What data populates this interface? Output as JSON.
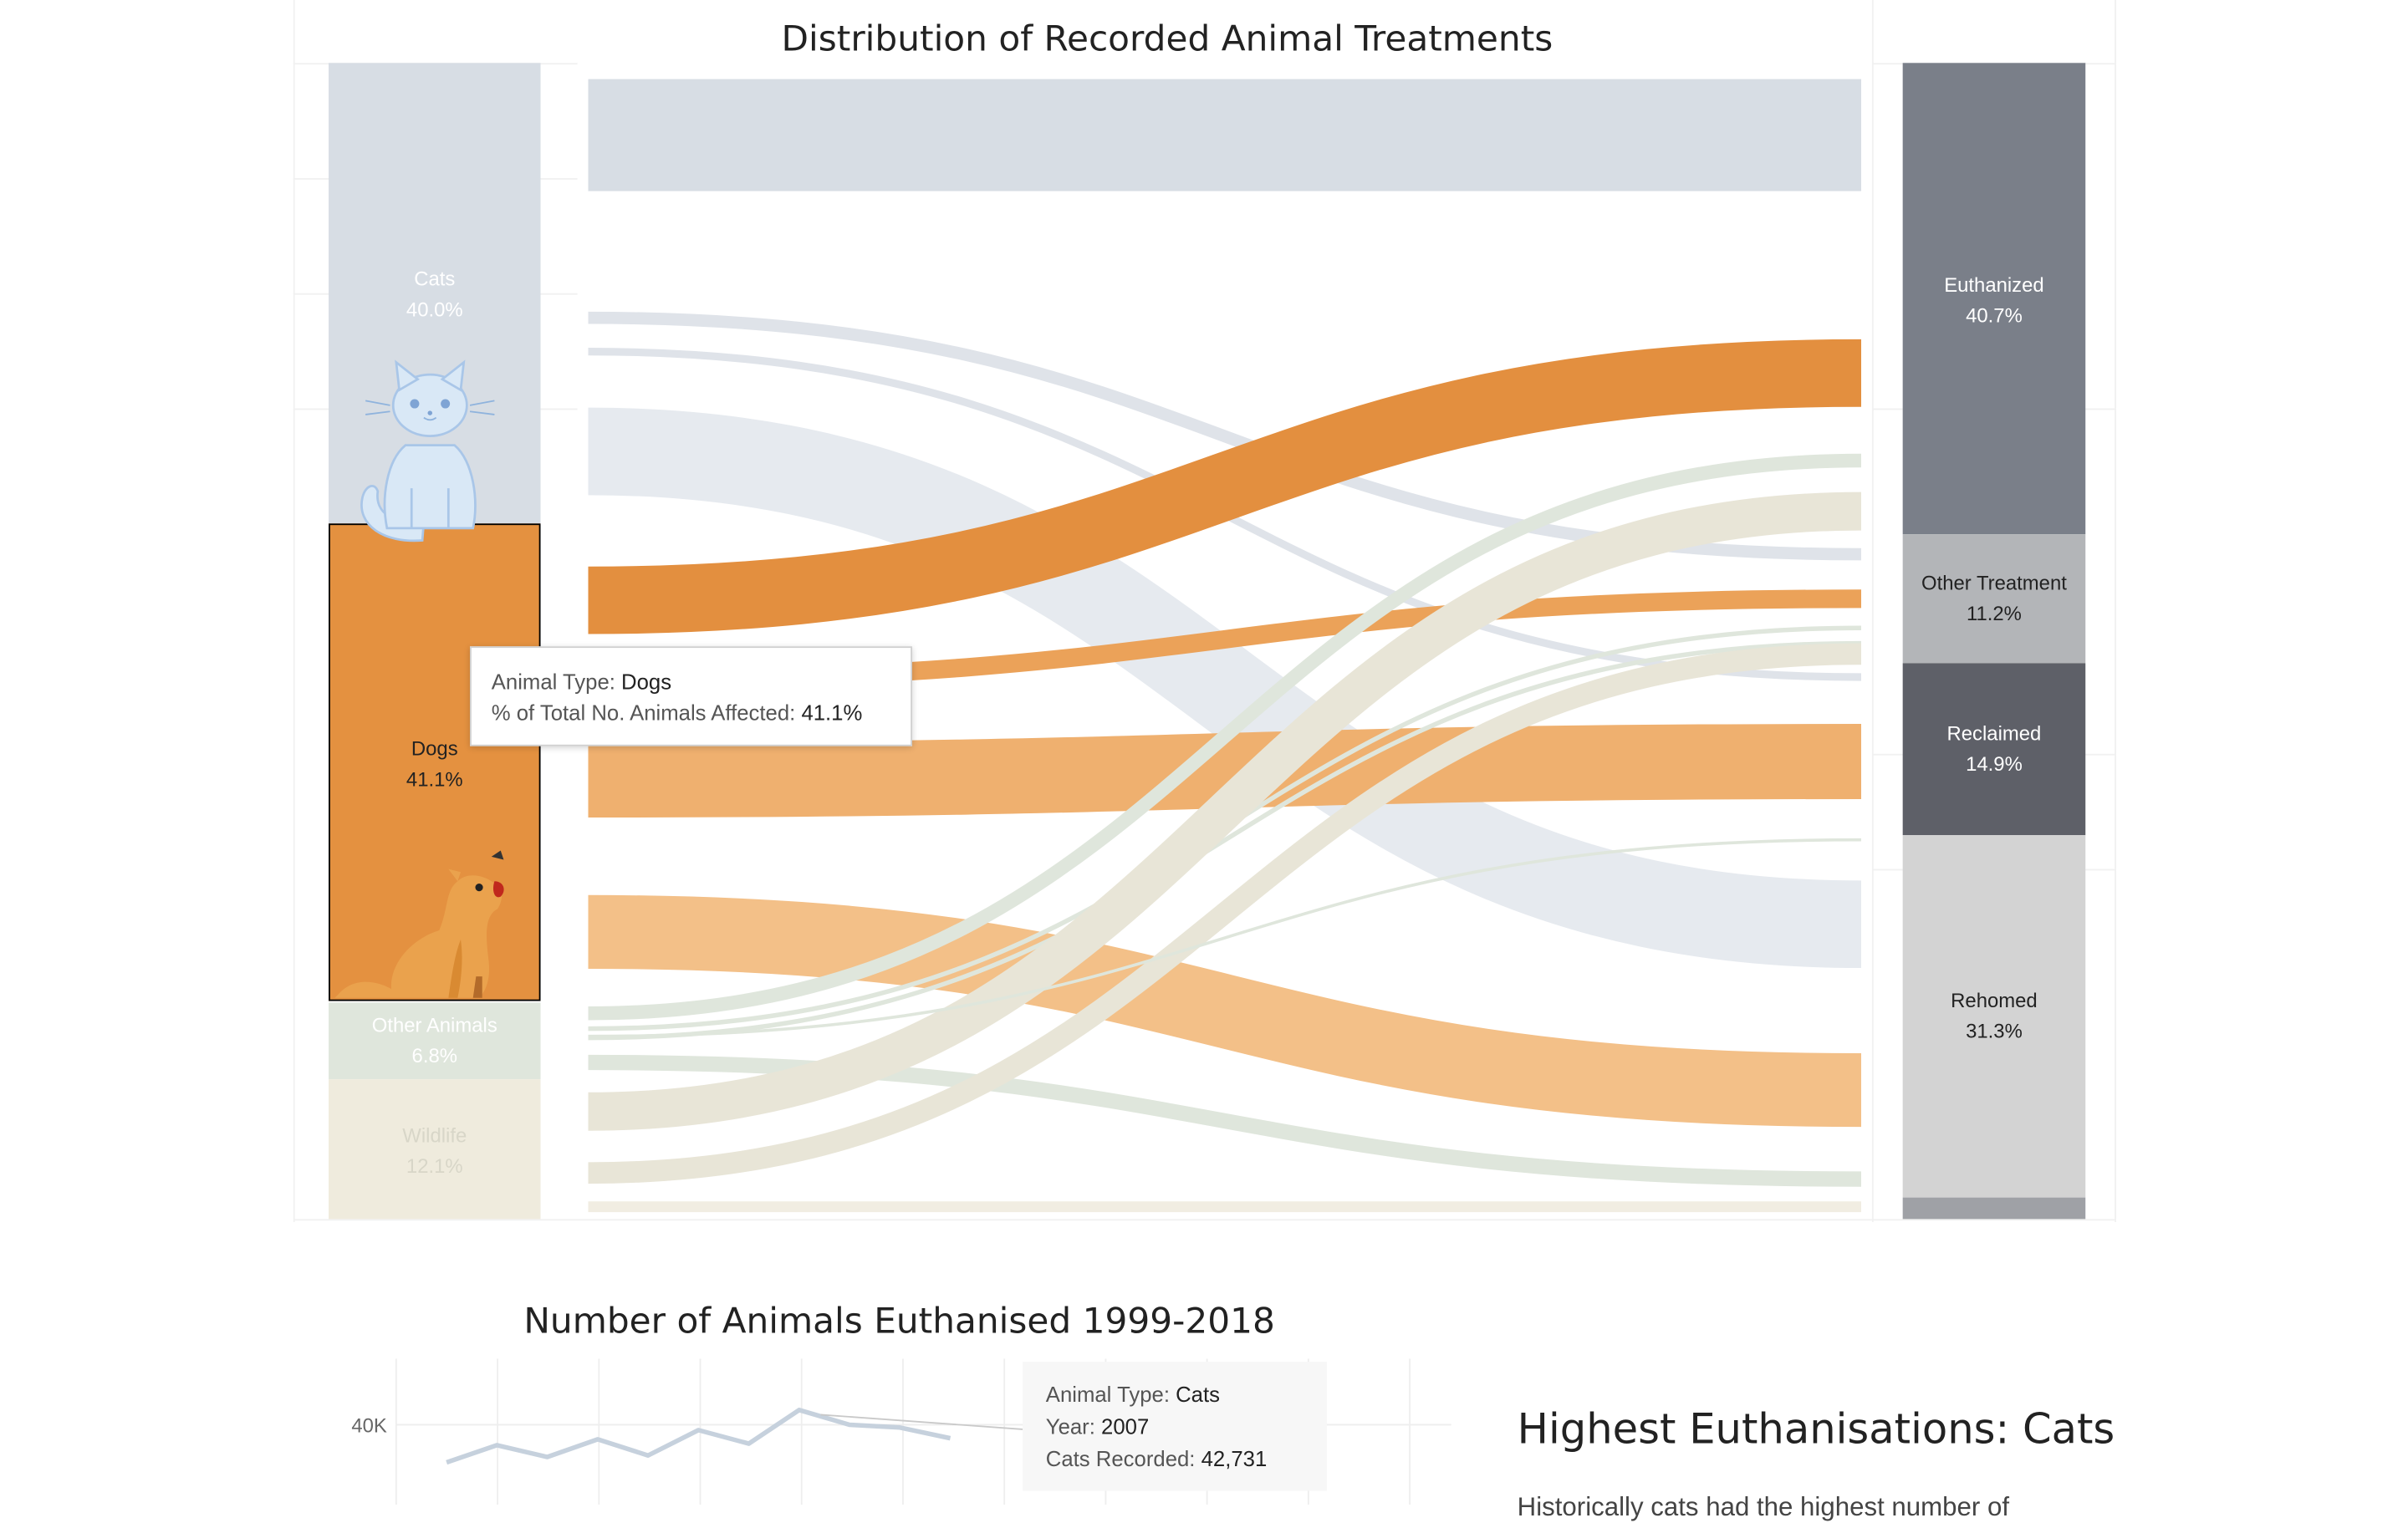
{
  "sankey": {
    "chart_data": {
      "type": "sankey",
      "title": "Distribution of Recorded Animal Treatments",
      "sources": [
        {
          "name": "Cats",
          "percent_label": "40.0%",
          "share": 0.4,
          "color": "#d7dde4"
        },
        {
          "name": "Dogs",
          "percent_label": "41.1%",
          "share": 0.411,
          "color": "#e49140"
        },
        {
          "name": "Other Animals",
          "percent_label": "6.8%",
          "share": 0.068,
          "color": "#dfe6dc"
        },
        {
          "name": "Wildlife",
          "percent_label": "12.1%",
          "share": 0.121,
          "color": "#efebdd"
        }
      ],
      "targets": [
        {
          "name": "Euthanized",
          "percent_label": "40.7%",
          "share": 0.407,
          "color": "#7a7f89",
          "text_color": "#ffffff"
        },
        {
          "name": "Other Treatment",
          "percent_label": "11.2%",
          "share": 0.112,
          "color": "#b3b5b8",
          "text_color": "#222222"
        },
        {
          "name": "Reclaimed",
          "percent_label": "14.9%",
          "share": 0.149,
          "color": "#5e6068",
          "text_color": "#ffffff"
        },
        {
          "name": "Rehomed",
          "percent_label": "31.3%",
          "share": 0.313,
          "color": "#d3d3d3",
          "text_color": "#222222"
        },
        {
          "name": "",
          "percent_label": "",
          "share": 0.019,
          "color": "#9fa1a6",
          "text_color": "#222222"
        }
      ],
      "highlighted_source": "Dogs"
    },
    "tooltip": {
      "line1_label": "Animal Type:",
      "line1_value": "Dogs",
      "line2_label": "% of Total No. Animals Affected:",
      "line2_value": "41.1%"
    }
  },
  "line_chart": {
    "chart_data": {
      "type": "line",
      "title": "Number of Animals Euthanised 1999-2018",
      "y_ticks": [
        "40K"
      ],
      "series": [
        {
          "name": "Cats",
          "color": "#c6d1dd",
          "points_visible": [
            {
              "year": 2000,
              "value": 33000
            },
            {
              "year": 2001,
              "value": 36200
            },
            {
              "year": 2002,
              "value": 34000
            },
            {
              "year": 2003,
              "value": 37300
            },
            {
              "year": 2004,
              "value": 34300
            },
            {
              "year": 2005,
              "value": 39000
            },
            {
              "year": 2006,
              "value": 36500
            },
            {
              "year": 2007,
              "value": 42731
            },
            {
              "year": 2008,
              "value": 40000
            },
            {
              "year": 2009,
              "value": 39500
            },
            {
              "year": 2010,
              "value": 37500
            }
          ]
        }
      ]
    },
    "tooltip": {
      "line1_label": "Animal Type:",
      "line1_value": "Cats",
      "line2_label": "Year:",
      "line2_value": "2007",
      "line3_label": "Cats Recorded:",
      "line3_value": "42,731"
    }
  },
  "side_panel": {
    "heading": "Highest Euthanisations: Cats",
    "body_partial": "Historically cats had the highest number of"
  },
  "icons": [
    "cat-icon",
    "dog-icon"
  ]
}
